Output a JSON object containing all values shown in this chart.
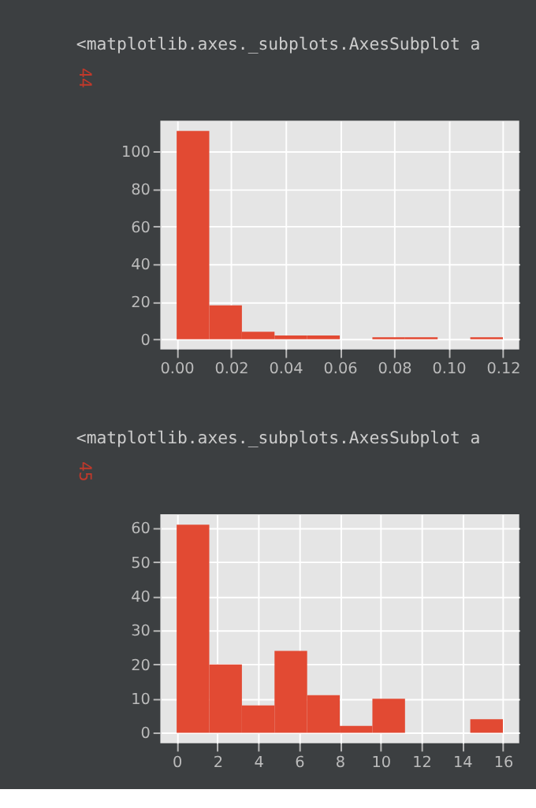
{
  "chart_data": [
    {
      "type": "histogram",
      "annotations": [
        "44",
        "<matplotlib.axes._subplots.AxesSubplot a"
      ],
      "color": "#e24a33",
      "bins": [
        0,
        0.012,
        0.024,
        0.036,
        0.048,
        0.06,
        0.072,
        0.084,
        0.096,
        0.108,
        0.12
      ],
      "values": [
        111,
        18,
        4,
        2,
        2,
        0,
        1,
        1,
        0,
        1
      ],
      "xlim": [
        -0.006,
        0.126
      ],
      "ylim": [
        -5.5,
        116.5
      ],
      "xticks": [
        {
          "value": 0,
          "label": "0.00"
        },
        {
          "value": 0.02,
          "label": "0.02"
        },
        {
          "value": 0.04,
          "label": "0.04"
        },
        {
          "value": 0.06,
          "label": "0.06"
        },
        {
          "value": 0.08,
          "label": "0.08"
        },
        {
          "value": 0.1,
          "label": "0.10"
        },
        {
          "value": 0.12,
          "label": "0.12"
        }
      ],
      "yticks": [
        0,
        20,
        40,
        60,
        80,
        100
      ],
      "grid": true
    },
    {
      "type": "histogram",
      "annotations": [
        "45",
        "<matplotlib.axes._subplots.AxesSubplot a"
      ],
      "color": "#e24a33",
      "bins": [
        0,
        1.6,
        3.2,
        4.8,
        6.4,
        8,
        9.6,
        11.2,
        12.8,
        14.4,
        16
      ],
      "values": [
        61,
        20,
        8,
        24,
        11,
        2,
        10,
        0,
        0,
        4
      ],
      "xlim": [
        -0.8,
        16.8
      ],
      "ylim": [
        -3.05,
        64.05
      ],
      "xticks": [
        0,
        2,
        4,
        6,
        8,
        10,
        12,
        14,
        16
      ],
      "yticks": [
        0,
        10,
        20,
        30,
        40,
        50,
        60
      ],
      "grid": true
    }
  ]
}
